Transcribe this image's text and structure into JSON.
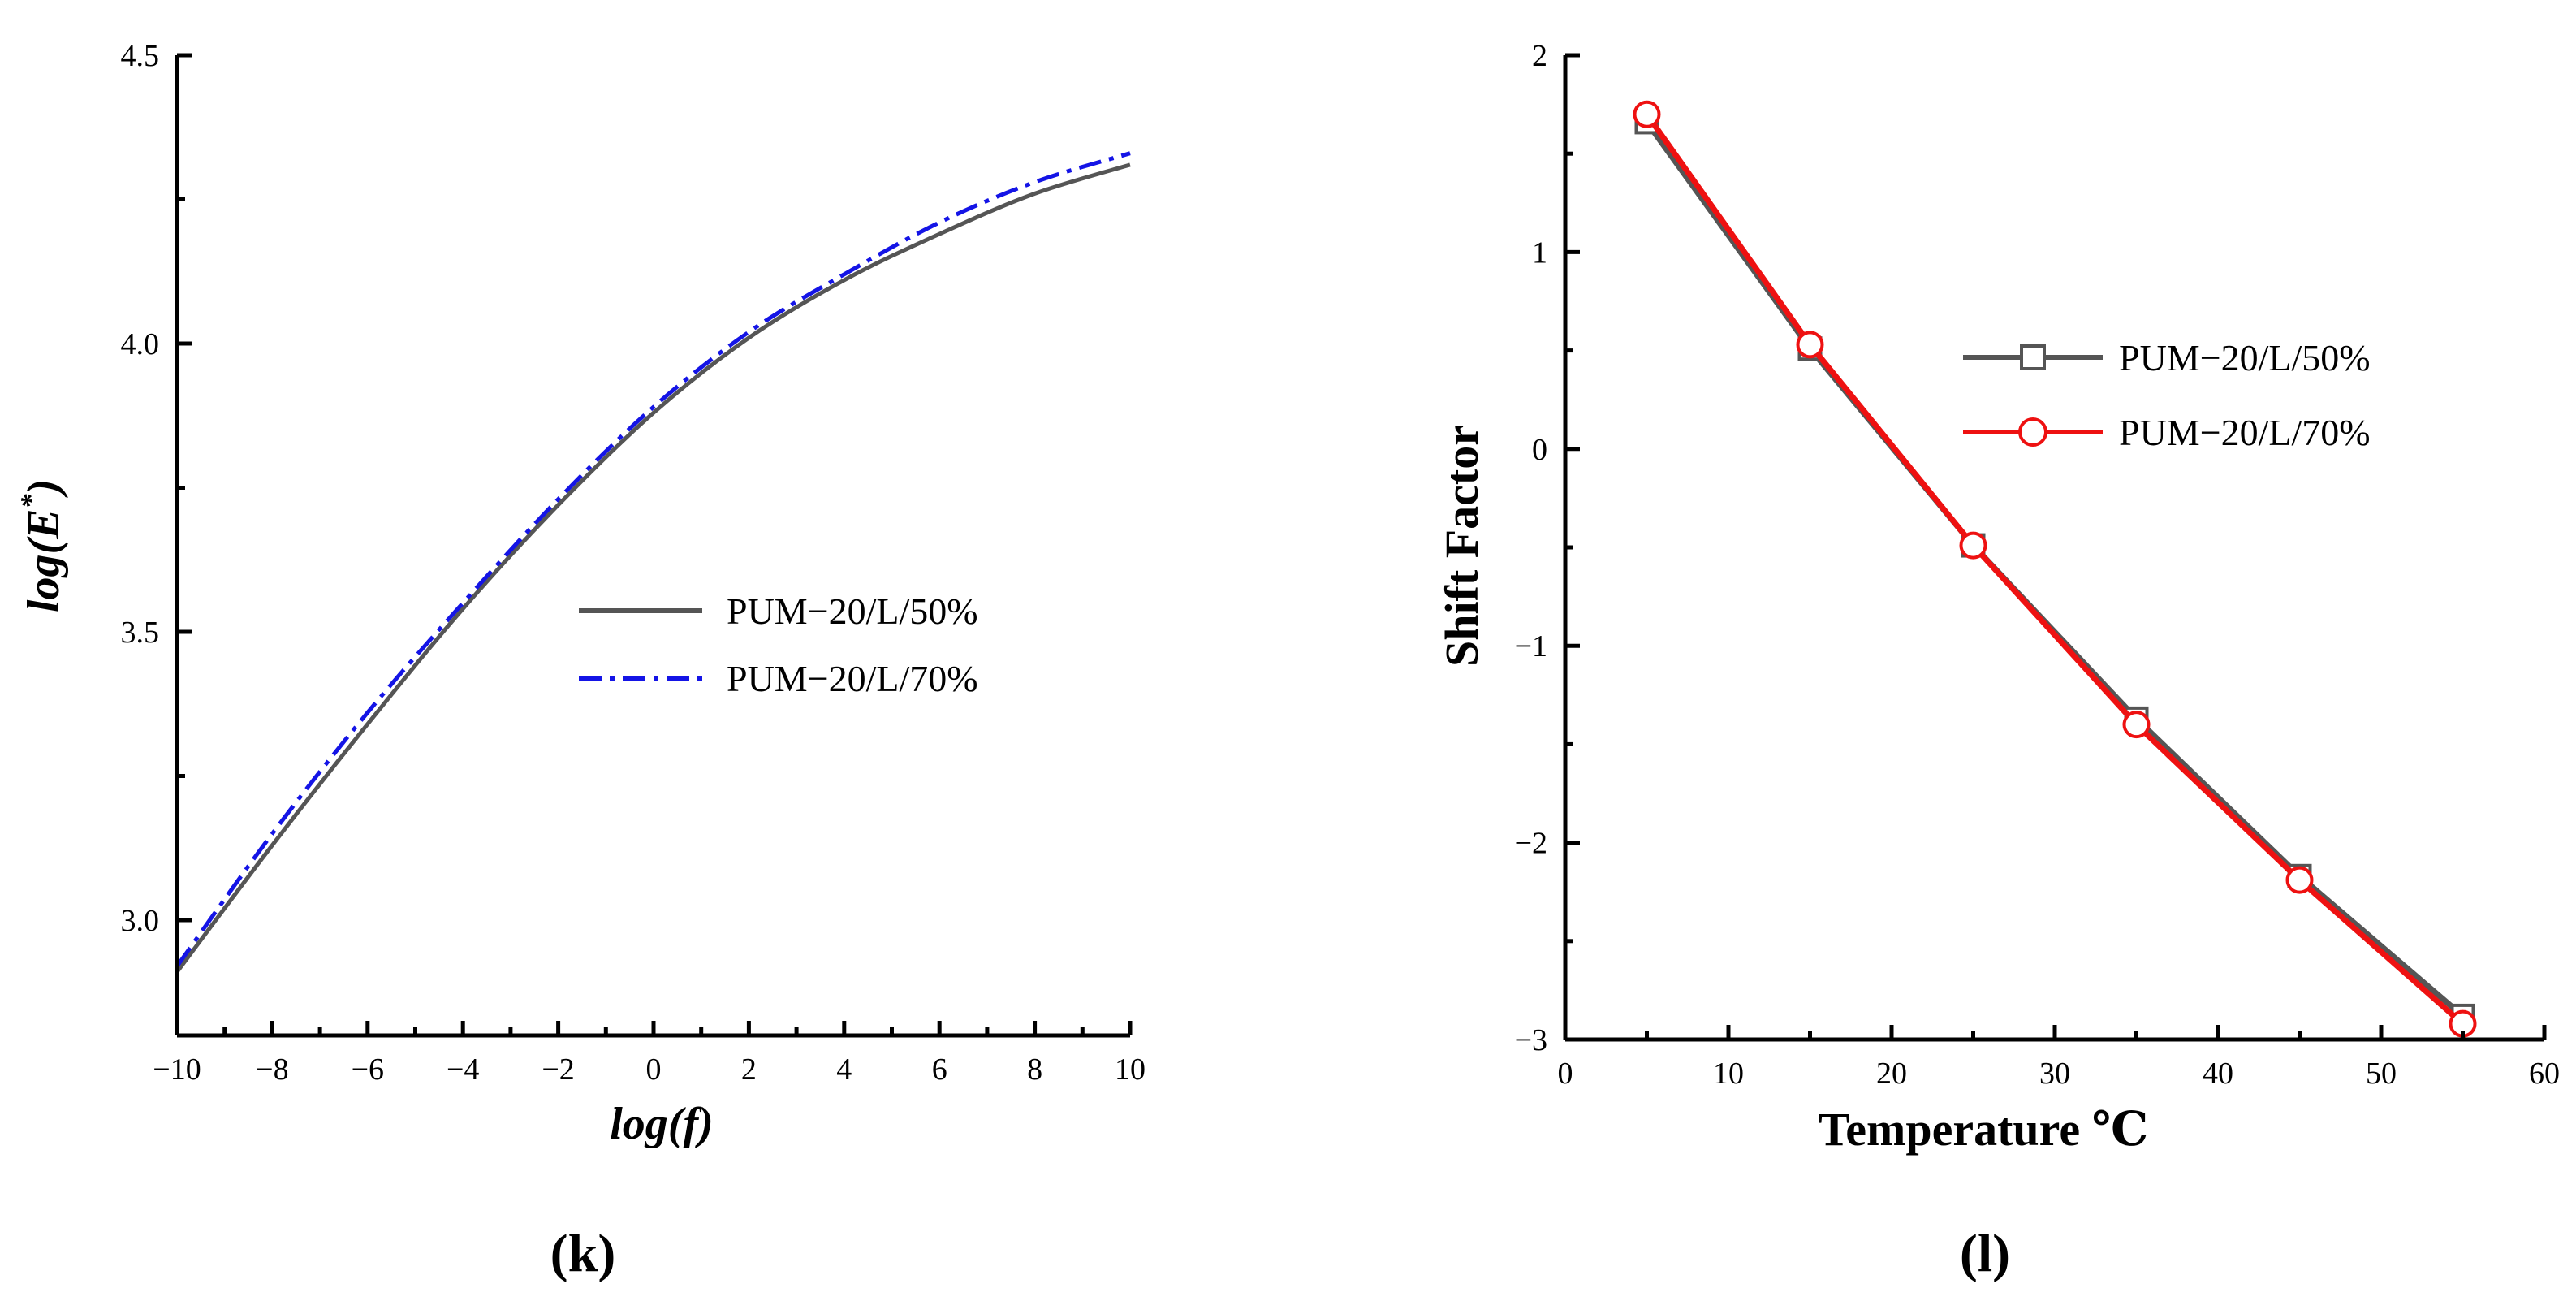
{
  "chart_data": [
    {
      "type": "line",
      "panel_label": "(k)",
      "xlabel": "log(f)",
      "ylabel_prefix": "log(E",
      "ylabel_sup": "*",
      "ylabel_suffix": ")",
      "xlim": [
        -10,
        10
      ],
      "ylim": [
        2.8,
        4.5
      ],
      "xticks": [
        -10,
        -8,
        -6,
        -4,
        -2,
        0,
        2,
        4,
        6,
        8,
        10
      ],
      "xtick_labels": [
        "−10",
        "−8",
        "−6",
        "−4",
        "−2",
        "0",
        "2",
        "4",
        "6",
        "8",
        "10"
      ],
      "yticks": [
        3.0,
        3.5,
        4.0,
        4.5
      ],
      "ytick_labels": [
        "3.0",
        "3.5",
        "4.0",
        "4.5"
      ],
      "legend_position": "center-right",
      "x": [
        -10,
        -8,
        -6,
        -4,
        -2,
        0,
        2,
        4,
        6,
        8,
        10
      ],
      "series": [
        {
          "name": "PUM−20/L/50%",
          "color": "#555555",
          "style": "solid",
          "values": [
            2.91,
            3.13,
            3.34,
            3.54,
            3.72,
            3.88,
            4.01,
            4.11,
            4.19,
            4.26,
            4.31
          ]
        },
        {
          "name": "PUM−20/L/70%",
          "color": "#1414e6",
          "style": "dashdot",
          "values": [
            2.92,
            3.15,
            3.36,
            3.55,
            3.73,
            3.89,
            4.02,
            4.12,
            4.21,
            4.28,
            4.33
          ]
        }
      ]
    },
    {
      "type": "line",
      "panel_label": "(l)",
      "xlabel": "Temperature ℃",
      "ylabel": "Shift Factor",
      "xlim": [
        0,
        60
      ],
      "ylim": [
        -3,
        2
      ],
      "xticks": [
        0,
        10,
        20,
        30,
        40,
        50,
        60
      ],
      "xtick_labels": [
        "0",
        "10",
        "20",
        "30",
        "40",
        "50",
        "60"
      ],
      "yticks": [
        -3,
        -2,
        -1,
        0,
        1,
        2
      ],
      "ytick_labels": [
        "−3",
        "−2",
        "−1",
        "0",
        "1",
        "2"
      ],
      "legend_position": "top-right",
      "x": [
        5,
        15,
        25,
        35,
        45,
        55
      ],
      "series": [
        {
          "name": "PUM−20/L/50%",
          "color": "#555555",
          "marker": "square",
          "values": [
            1.66,
            0.51,
            -0.49,
            -1.37,
            -2.17,
            -2.88
          ]
        },
        {
          "name": "PUM−20/L/70%",
          "color": "#ee1111",
          "marker": "circle",
          "values": [
            1.7,
            0.53,
            -0.49,
            -1.4,
            -2.19,
            -2.92
          ]
        }
      ]
    }
  ]
}
